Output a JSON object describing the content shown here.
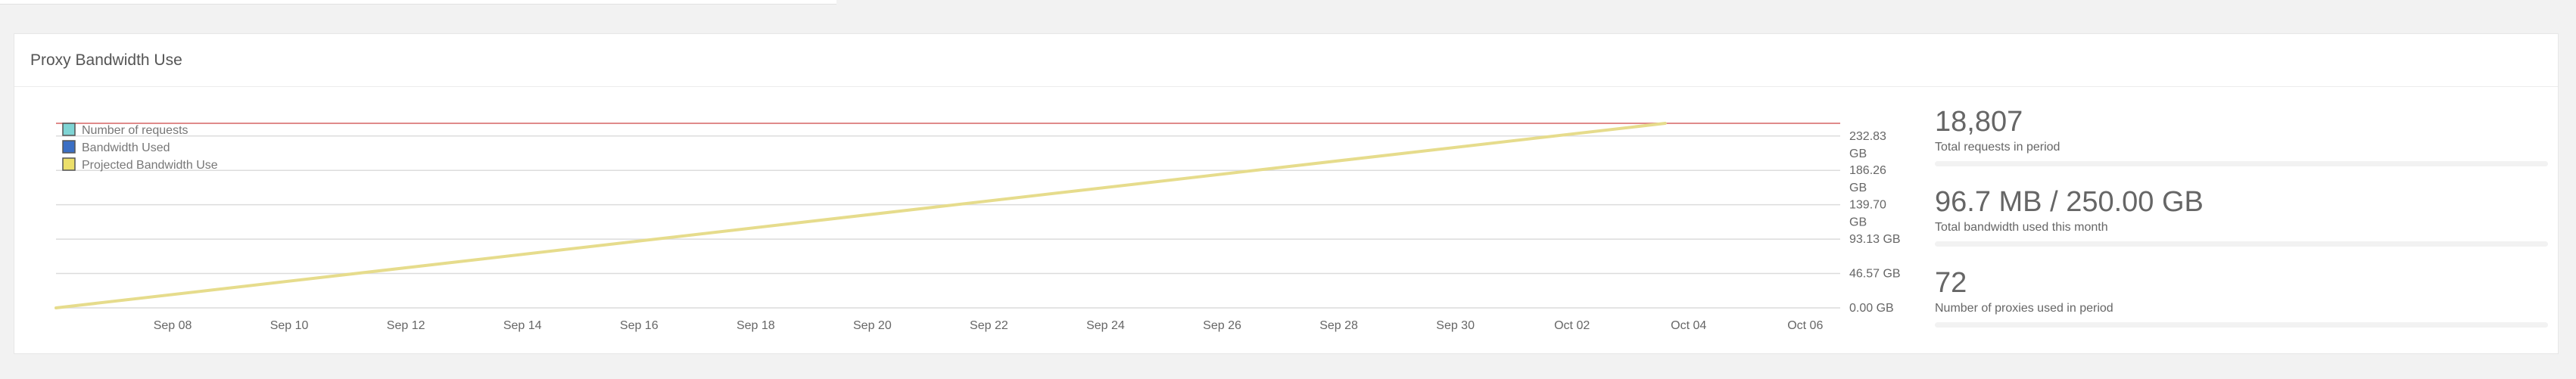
{
  "panel": {
    "title": "Proxy Bandwidth Use"
  },
  "stats": [
    {
      "value": "18,807",
      "label": "Total requests in period"
    },
    {
      "value": "96.7 MB / 250.00 GB",
      "label": "Total bandwidth used this month"
    },
    {
      "value": "72",
      "label": "Number of proxies used in period"
    }
  ],
  "colors": {
    "limit_line": "#e08a8a",
    "projected": "#e6dc8c",
    "requests": "#7fd4d4",
    "bandwidth": "#3b6fc4"
  },
  "chart_data": {
    "type": "line",
    "legend": {
      "placement": "top-left",
      "entries": [
        {
          "name": "Number of requests",
          "color": "#7fd4d4"
        },
        {
          "name": "Bandwidth Used",
          "color": "#3b6fc4"
        },
        {
          "name": "Projected Bandwidth Use",
          "color": "#ecdf6a"
        }
      ]
    },
    "x_ticks": [
      "Sep 08",
      "Sep 10",
      "Sep 12",
      "Sep 14",
      "Sep 16",
      "Sep 18",
      "Sep 20",
      "Sep 22",
      "Sep 24",
      "Sep 26",
      "Sep 28",
      "Sep 30",
      "Oct 02",
      "Oct 04",
      "Oct 06"
    ],
    "x_tick_days": [
      2,
      4,
      6,
      8,
      10,
      12,
      14,
      16,
      18,
      20,
      22,
      24,
      26,
      28,
      30
    ],
    "xlim_days": [
      0,
      30.6
    ],
    "x_axis_start": "Sep 06",
    "y_axis_ticks": [
      {
        "value": 0,
        "label": "0.00 GB"
      },
      {
        "value": 46.57,
        "label": "46.57 GB"
      },
      {
        "value": 93.13,
        "label": "93.13 GB"
      },
      {
        "value": 139.7,
        "label": "139.70 GB"
      },
      {
        "value": 186.26,
        "label": "186.26 GB"
      },
      {
        "value": 232.83,
        "label": "232.83 GB"
      }
    ],
    "ylim": [
      0,
      250
    ],
    "grid": true,
    "limit_value": 250,
    "series": [
      {
        "name": "Projected Bandwidth Use",
        "x": [
          0,
          27.6
        ],
        "y": [
          0,
          250
        ]
      }
    ]
  }
}
